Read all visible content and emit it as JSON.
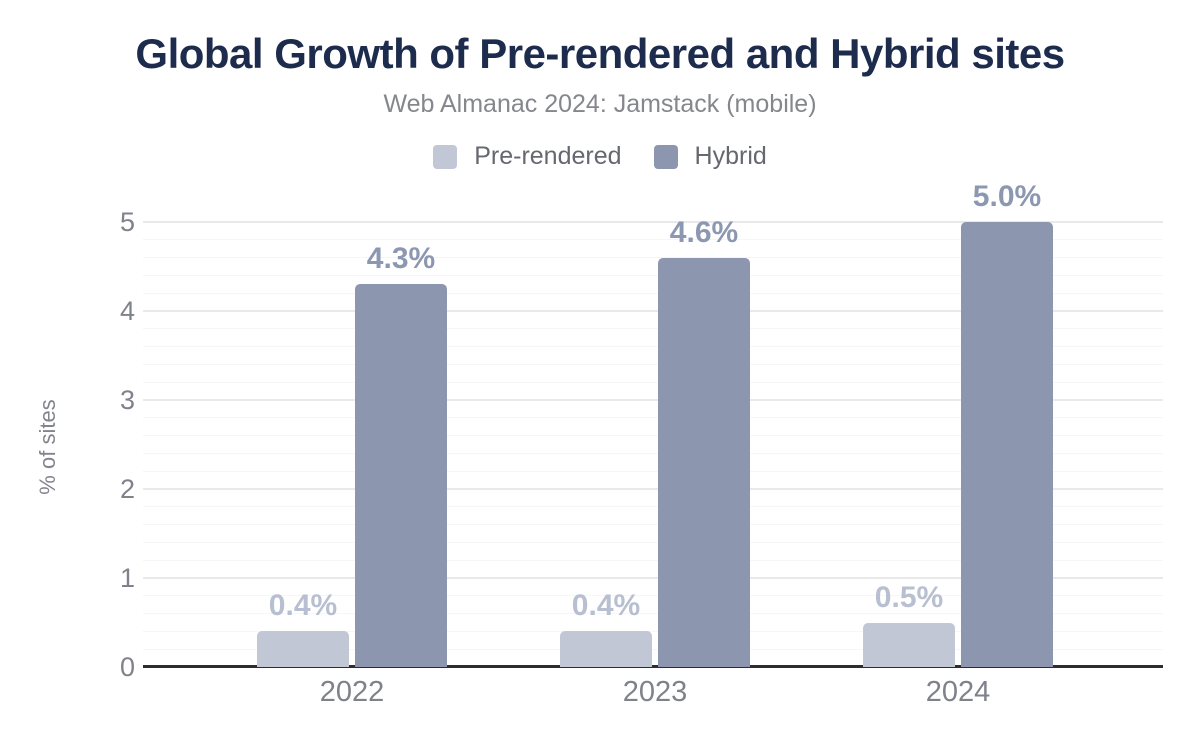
{
  "chart_data": {
    "type": "bar",
    "title": "Global Growth of Pre-rendered and Hybrid sites",
    "subtitle": "Web Almanac 2024: Jamstack (mobile)",
    "categories": [
      "2022",
      "2023",
      "2024"
    ],
    "series": [
      {
        "name": "Pre-rendered",
        "color": "#c1c7d4",
        "label_color": "#b7bfd0",
        "values": [
          0.4,
          0.4,
          0.5
        ],
        "labels": [
          "0.4%",
          "0.4%",
          "0.5%"
        ]
      },
      {
        "name": "Hybrid",
        "color": "#8c97af",
        "label_color": "#8c98b1",
        "values": [
          4.3,
          4.6,
          5.0
        ],
        "labels": [
          "4.3%",
          "4.6%",
          "5.0%"
        ]
      }
    ],
    "xlabel": "",
    "ylabel": "% of sites",
    "ylim": [
      0,
      5
    ],
    "yticks": [
      0,
      1,
      2,
      3,
      4,
      5
    ],
    "minor_grid_step": 0.2,
    "grid": true,
    "legend_position": "top"
  },
  "colors": {
    "background": "#ffffff",
    "title": "#1d2b4d",
    "subtitle": "#85878c",
    "legend_text": "#65686f",
    "tick_label": "#7f828a",
    "axis_title": "#83858c",
    "major_grid": "#e9e9e9",
    "minor_grid": "#f6f6f6",
    "baseline": "#2d2d2d"
  }
}
